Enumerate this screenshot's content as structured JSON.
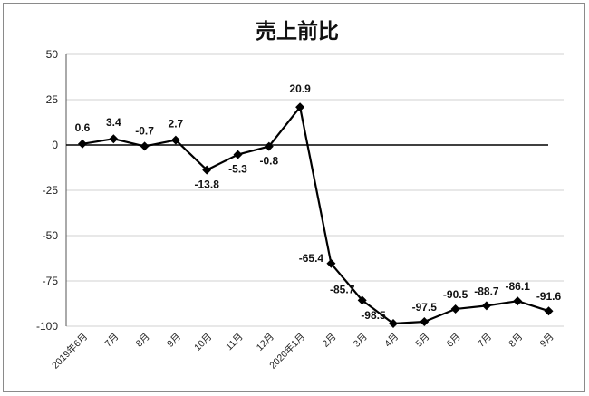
{
  "chart_data": {
    "type": "line",
    "title": "売上前比",
    "xlabel": "",
    "ylabel": "",
    "ylim": [
      -100,
      50
    ],
    "yticks": [
      "50",
      "25",
      "0",
      "-25",
      "-50",
      "-75",
      "-100"
    ],
    "categories": [
      "2019年6月",
      "7月",
      "8月",
      "9月",
      "10月",
      "11月",
      "12月",
      "2020年1月",
      "2月",
      "3月",
      "4月",
      "5月",
      "6月",
      "7月",
      "8月",
      "9月"
    ],
    "values": [
      0.6,
      3.4,
      -0.7,
      2.7,
      -13.8,
      -5.3,
      -0.8,
      20.9,
      -65.4,
      -85.7,
      -98.5,
      -97.5,
      -90.5,
      -88.7,
      -86.1,
      -91.6
    ],
    "data_labels": [
      "0.6",
      "3.4",
      "-0.7",
      "2.7",
      "-13.8",
      "-5.3",
      "-0.8",
      "20.9",
      "-65.4",
      "-85.7",
      "-98.5",
      "-97.5",
      "-90.5",
      "-88.7",
      "-86.1",
      "-91.6"
    ],
    "grid": true,
    "legend": "none",
    "line_color": "#000000",
    "gridline_color": "#d0d0d0"
  }
}
